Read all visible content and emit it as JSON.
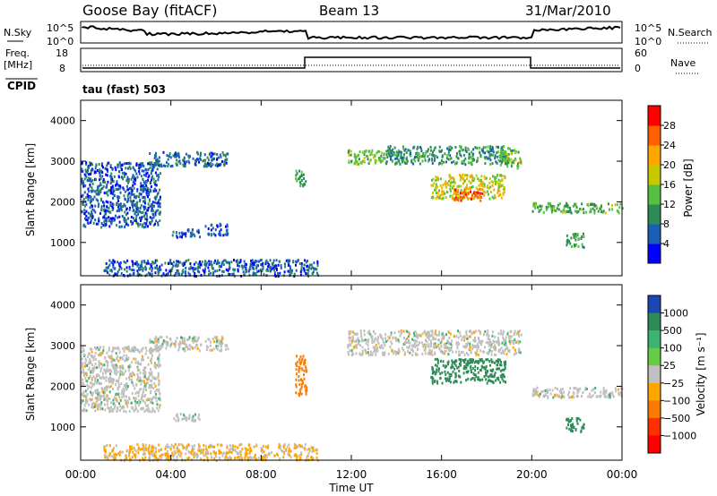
{
  "header": {
    "title": "Goose Bay (fitACF)",
    "beam": "Beam 13",
    "date": "31/Mar/2010"
  },
  "noise_panel": {
    "left_label": "N.Sky",
    "left_ticks": [
      "10^5",
      "10^0"
    ],
    "right_ticks": [
      "10^5",
      "10^0"
    ],
    "right_label": "N.Search"
  },
  "freq_panel": {
    "left_label_line1": "Freq.",
    "left_label_line2": "[MHz]",
    "left_ticks": [
      "18",
      "8"
    ],
    "right_ticks": [
      "60",
      "0"
    ],
    "right_label": "Nave"
  },
  "cpid_label": "CPID",
  "mode_label": "tau (fast) 503",
  "colors": {
    "power": [
      "#0000ff",
      "#1a5fb4",
      "#2e8b57",
      "#55c040",
      "#c8c800",
      "#ffa500",
      "#ff6000",
      "#ff0000"
    ],
    "velocity_gray": "#c0c0c0"
  },
  "chart_data": [
    {
      "type": "heatmap",
      "name": "power",
      "ylabel": "Slant Range [km]",
      "yticks": [
        "1000",
        "2000",
        "3000",
        "4000"
      ],
      "ylim": [
        180,
        4500
      ],
      "xlim": [
        0,
        24
      ],
      "colorbar_label": "Power [dB]",
      "colorbar_ticks": [
        "4",
        "8",
        "12",
        "16",
        "20",
        "24",
        "28"
      ],
      "colorbar_range": [
        0,
        32
      ],
      "echo_regions": [
        {
          "t0": 0.0,
          "t1": 3.5,
          "r0": 1400,
          "r1": 3000,
          "power": 6
        },
        {
          "t0": 3.0,
          "t1": 6.5,
          "r0": 2900,
          "r1": 3250,
          "power": 7
        },
        {
          "t0": 4.0,
          "t1": 5.3,
          "r0": 1150,
          "r1": 1350,
          "power": 6
        },
        {
          "t0": 5.5,
          "t1": 6.5,
          "r0": 1200,
          "r1": 1500,
          "power": 5
        },
        {
          "t0": 1.0,
          "t1": 10.5,
          "r0": 200,
          "r1": 600,
          "power": 6
        },
        {
          "t0": 9.5,
          "t1": 10.0,
          "r0": 2400,
          "r1": 2800,
          "power": 12
        },
        {
          "t0": 11.8,
          "t1": 13.5,
          "r0": 2950,
          "r1": 3300,
          "power": 14
        },
        {
          "t0": 13.5,
          "t1": 19.0,
          "r0": 2950,
          "r1": 3400,
          "power": 10
        },
        {
          "t0": 15.5,
          "t1": 18.8,
          "r0": 2100,
          "r1": 2700,
          "power": 18
        },
        {
          "t0": 16.5,
          "t1": 17.8,
          "r0": 2050,
          "r1": 2350,
          "power": 26
        },
        {
          "t0": 18.5,
          "t1": 19.5,
          "r0": 2850,
          "r1": 3300,
          "power": 14
        },
        {
          "t0": 20.0,
          "t1": 24.0,
          "r0": 1750,
          "r1": 2000,
          "power": 13
        },
        {
          "t0": 21.5,
          "t1": 22.3,
          "r0": 900,
          "r1": 1250,
          "power": 11
        }
      ]
    },
    {
      "type": "heatmap",
      "name": "velocity",
      "ylabel": "Slant Range [km]",
      "yticks": [
        "1000",
        "2000",
        "3000",
        "4000"
      ],
      "ylim": [
        180,
        4500
      ],
      "xlim": [
        0,
        24
      ],
      "colorbar_label": "Velocity [m s⁻¹]",
      "colorbar_ticks": [
        "1000",
        "500",
        "100",
        "25",
        "−25",
        "−100",
        "−500",
        "−1000"
      ],
      "colorbar_colors": [
        "#1c46b4",
        "#2e8b57",
        "#3cb371",
        "#66cc44",
        "#c0c0c0",
        "#ffa500",
        "#ff7a00",
        "#ff3000",
        "#ff0000"
      ],
      "echo_regions": [
        {
          "t0": 0.0,
          "t1": 3.5,
          "r0": 1400,
          "r1": 3000,
          "vel": 0
        },
        {
          "t0": 3.0,
          "t1": 6.5,
          "r0": 2900,
          "r1": 3250,
          "vel": 0
        },
        {
          "t0": 4.0,
          "t1": 5.3,
          "r0": 1150,
          "r1": 1350,
          "vel": 0
        },
        {
          "t0": 1.0,
          "t1": 10.5,
          "r0": 200,
          "r1": 600,
          "vel": -30
        },
        {
          "t0": 9.5,
          "t1": 10.0,
          "r0": 1800,
          "r1": 2800,
          "vel": -200
        },
        {
          "t0": 11.8,
          "t1": 19.5,
          "r0": 2800,
          "r1": 3400,
          "vel": 0
        },
        {
          "t0": 15.5,
          "t1": 18.8,
          "r0": 2100,
          "r1": 2700,
          "vel": 150
        },
        {
          "t0": 20.0,
          "t1": 24.0,
          "r0": 1750,
          "r1": 2000,
          "vel": 0
        },
        {
          "t0": 21.5,
          "t1": 22.3,
          "r0": 900,
          "r1": 1250,
          "vel": 150
        }
      ]
    }
  ],
  "x_axis": {
    "label": "Time UT",
    "ticks": [
      "00:00",
      "04:00",
      "08:00",
      "12:00",
      "16:00",
      "20:00",
      "00:00"
    ]
  }
}
